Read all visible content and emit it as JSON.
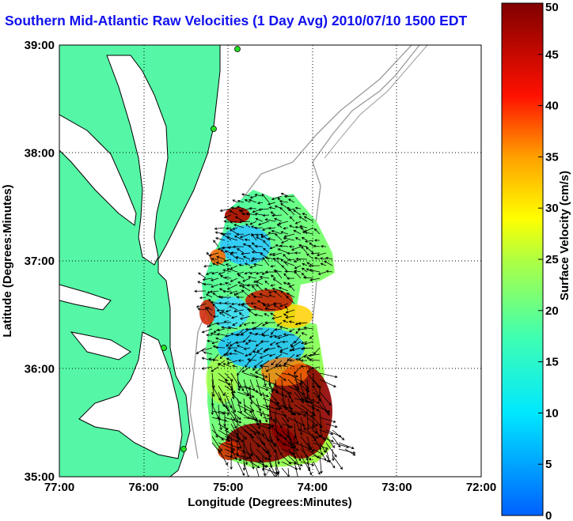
{
  "title": "Southern Mid-Atlantic Raw Velocities (1 Day Avg) 2010/07/10 1500 EDT",
  "map": {
    "xlabel": "Longitude (Degrees:Minutes)",
    "ylabel": "Latitude (Degrees:Minutes)",
    "lon_range": [
      -77,
      -72
    ],
    "lat_range": [
      35,
      39
    ],
    "lon_ticks": [
      {
        "value": -77,
        "label": "77:00"
      },
      {
        "value": -76,
        "label": "76:00"
      },
      {
        "value": -75,
        "label": "75:00"
      },
      {
        "value": -74,
        "label": "74:00"
      },
      {
        "value": -73,
        "label": "73:00"
      },
      {
        "value": -72,
        "label": "72:00"
      }
    ],
    "lat_ticks": [
      {
        "value": 35,
        "label": "35:00"
      },
      {
        "value": 36,
        "label": "36:00"
      },
      {
        "value": 37,
        "label": "37:00"
      },
      {
        "value": 38,
        "label": "38:00"
      },
      {
        "value": 39,
        "label": "39:00"
      }
    ],
    "grid": "dotted",
    "colors": {
      "land": "#55f7a6",
      "land_outline": "#000000",
      "bathymetry": "#9a9a9a",
      "stations": "#22e022",
      "arrows": "#000000"
    }
  },
  "colorbar": {
    "label": "Surface Velocity (cm/s)",
    "range": [
      0,
      50
    ],
    "ticks": [
      "0",
      "5",
      "10",
      "15",
      "20",
      "25",
      "30",
      "35",
      "40",
      "45",
      "50"
    ],
    "colormap": "jet"
  }
}
